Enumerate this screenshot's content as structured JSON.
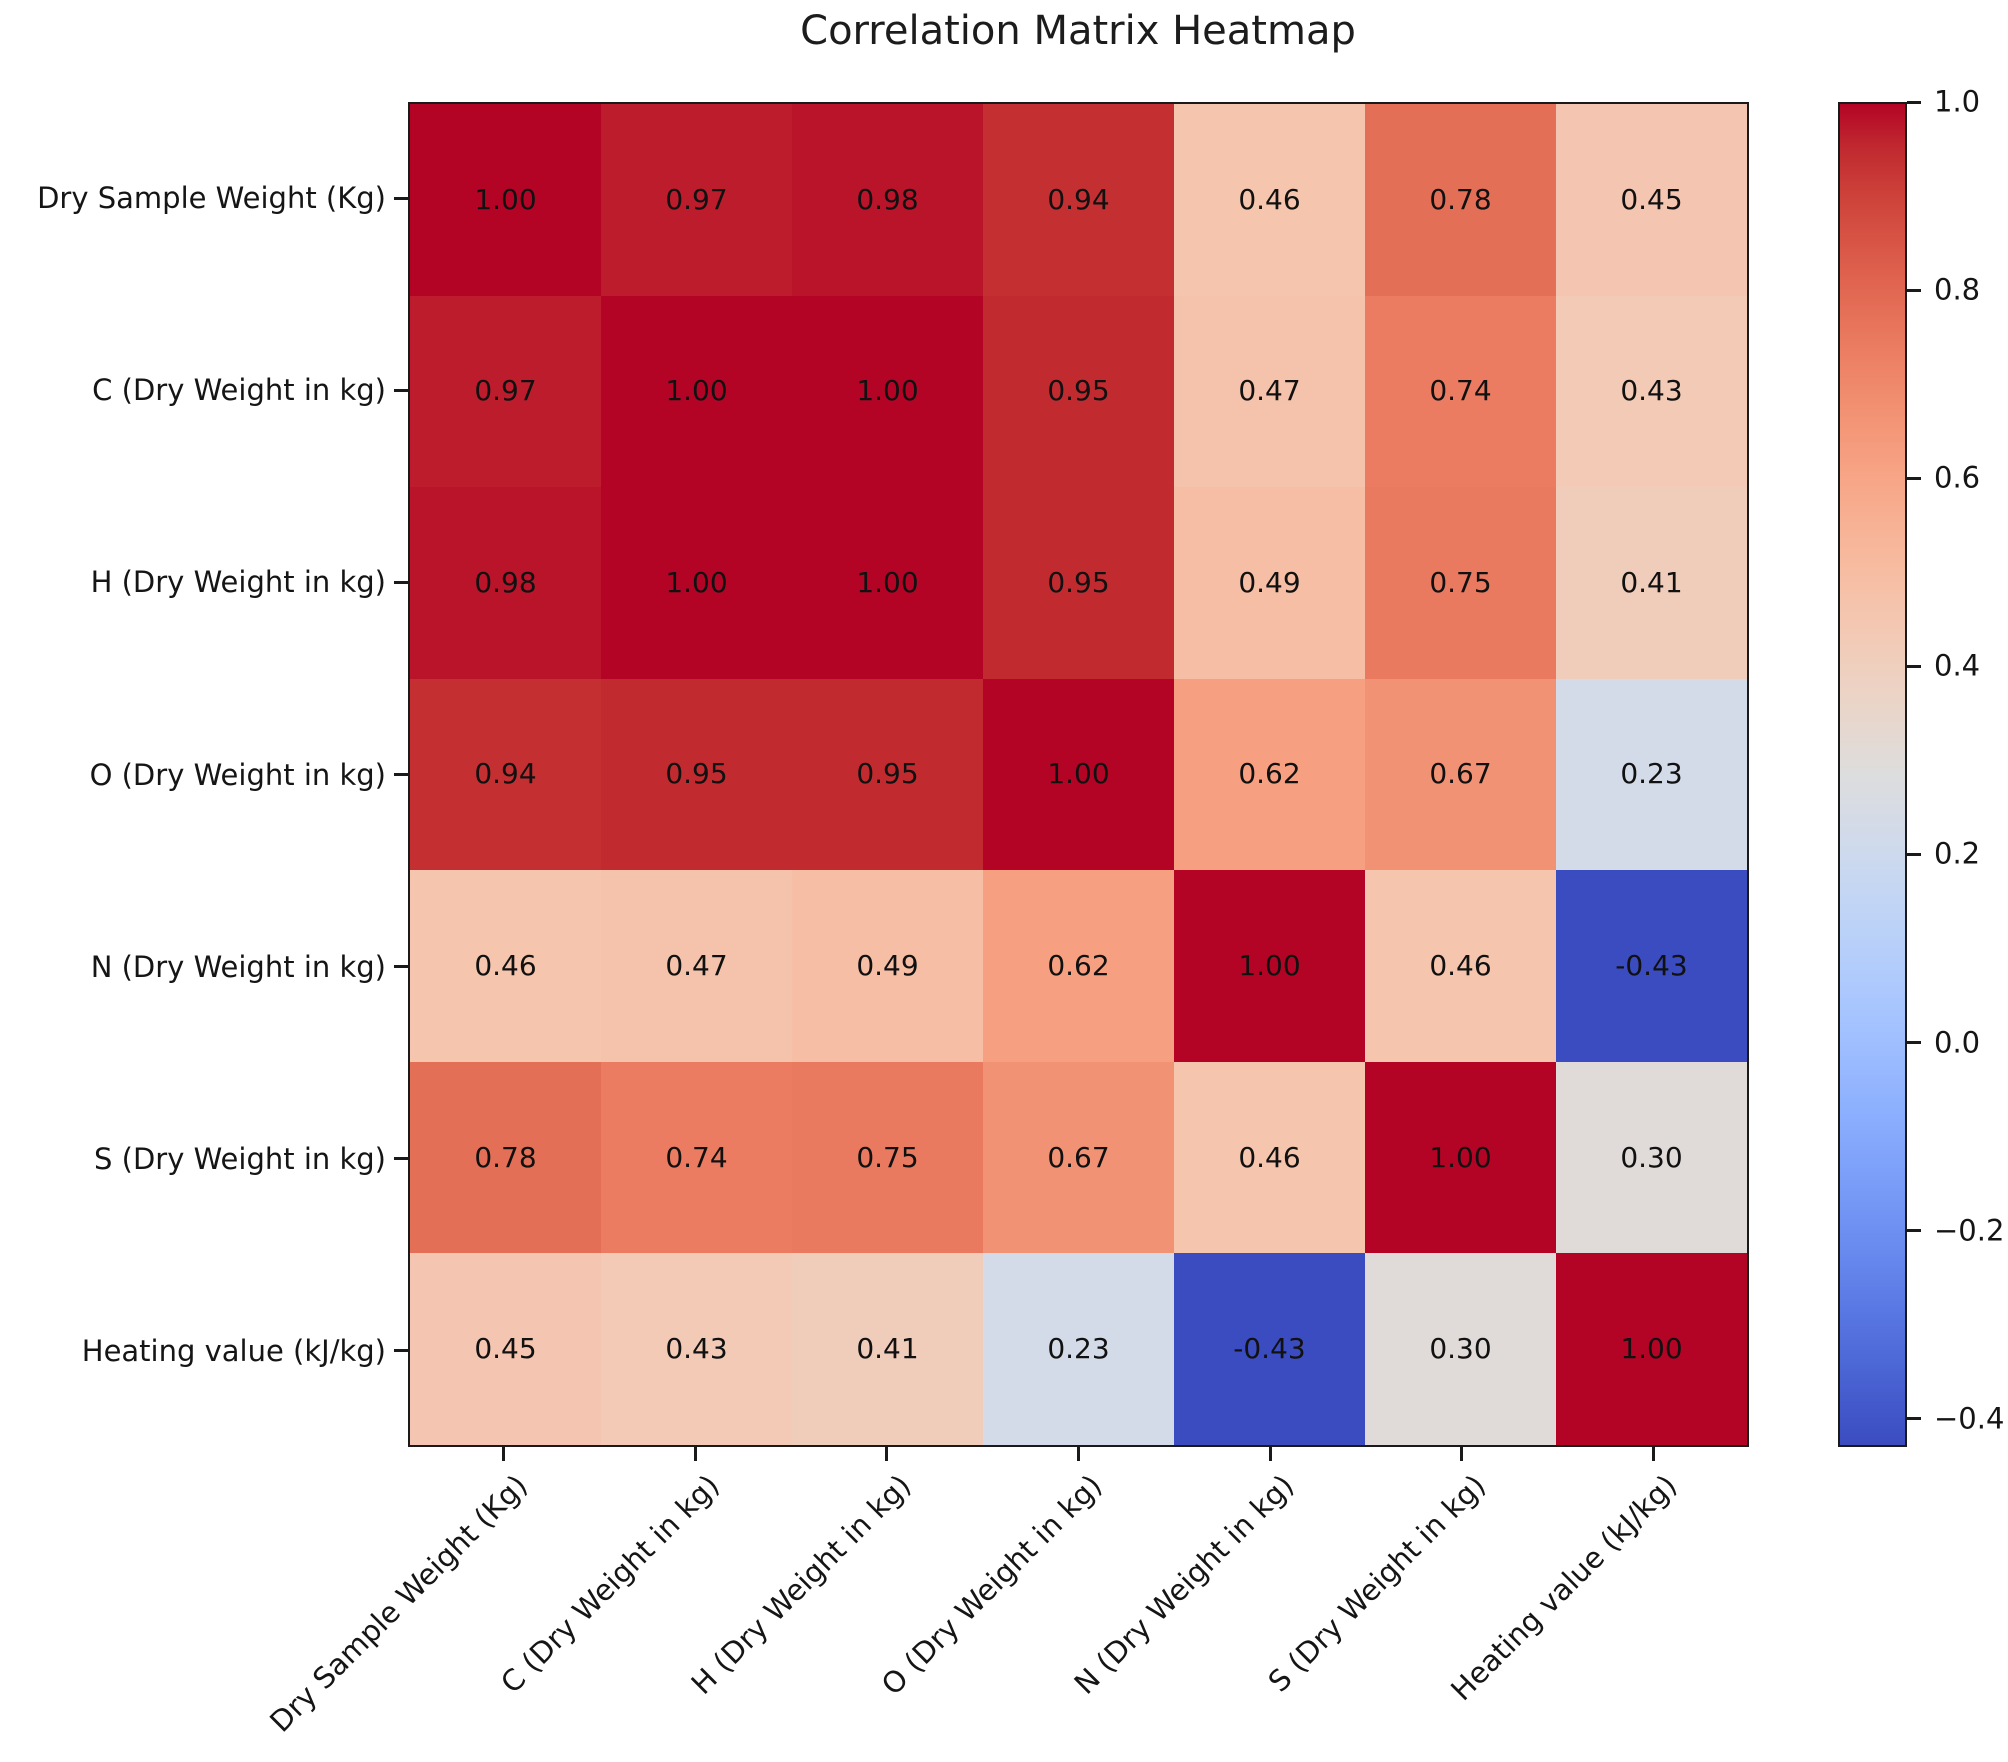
{
  "figure": {
    "title": "Correlation Matrix Heatmap"
  },
  "chart_data": {
    "type": "heatmap",
    "title": "Correlation Matrix Heatmap",
    "colormap": "coolwarm",
    "color_range": {
      "vmin": -0.43,
      "vmax": 1.0
    },
    "colors": {
      "max_red": "#b40426",
      "mid_neutral": "#dddddd",
      "min_blue": "#3b4cc0",
      "annotation_text": "#111111"
    },
    "variables": [
      "Dry Sample Weight (Kg)",
      "C (Dry Weight in kg)",
      "H (Dry Weight in kg)",
      "O (Dry Weight in kg)",
      "N (Dry Weight in kg)",
      "S (Dry Weight in kg)",
      "Heating value (kJ/kg)"
    ],
    "matrix": [
      [
        1.0,
        0.97,
        0.98,
        0.94,
        0.46,
        0.78,
        0.45
      ],
      [
        0.97,
        1.0,
        1.0,
        0.95,
        0.47,
        0.74,
        0.43
      ],
      [
        0.98,
        1.0,
        1.0,
        0.95,
        0.49,
        0.75,
        0.41
      ],
      [
        0.94,
        0.95,
        0.95,
        1.0,
        0.62,
        0.67,
        0.23
      ],
      [
        0.46,
        0.47,
        0.49,
        0.62,
        1.0,
        0.46,
        -0.43
      ],
      [
        0.78,
        0.74,
        0.75,
        0.67,
        0.46,
        1.0,
        0.3
      ],
      [
        0.45,
        0.43,
        0.41,
        0.23,
        -0.43,
        0.3,
        1.0
      ]
    ],
    "value_decimals": 2,
    "colorbar_ticks": [
      {
        "label": "1.0",
        "value": 1.0
      },
      {
        "label": "0.8",
        "value": 0.8
      },
      {
        "label": "0.6",
        "value": 0.6
      },
      {
        "label": "0.4",
        "value": 0.4
      },
      {
        "label": "0.2",
        "value": 0.2
      },
      {
        "label": "0.0",
        "value": 0.0
      },
      {
        "label": "−0.2",
        "value": -0.2
      },
      {
        "label": "−0.4",
        "value": -0.4
      }
    ]
  }
}
